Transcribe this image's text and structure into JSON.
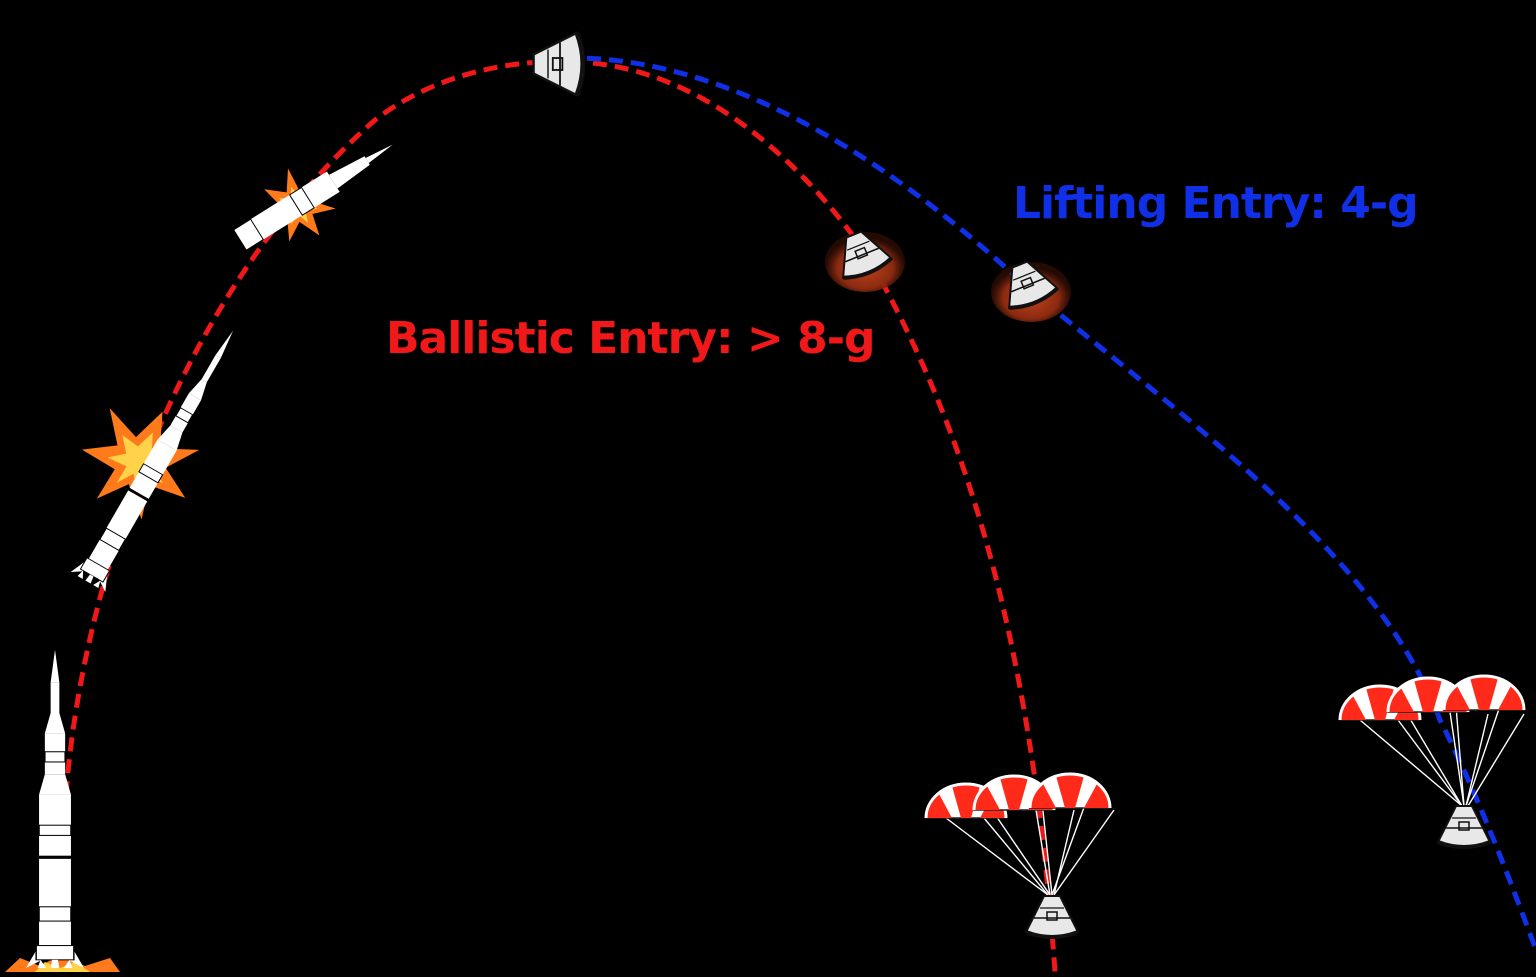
{
  "labels": {
    "ballistic": "Ballistic Entry: > 8-g",
    "lifting": "Lifting Entry: 4-g"
  },
  "colors": {
    "ballistic": "#f01818",
    "lifting": "#1030e8",
    "background": "#000000",
    "flame": "#ff7a1a",
    "parachute_red": "#ff2a1a"
  }
}
